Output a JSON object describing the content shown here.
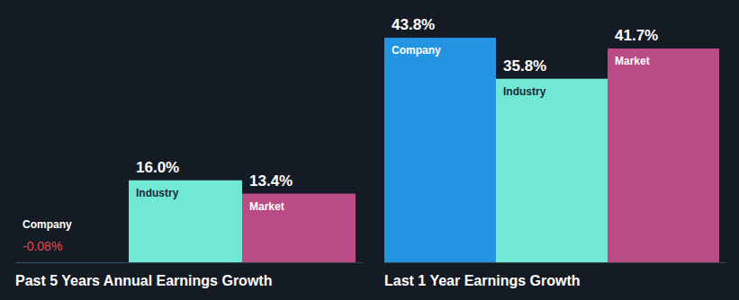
{
  "chart_data": [
    {
      "type": "bar",
      "title": "Past 5 Years Annual Earnings Growth",
      "categories": [
        "Company",
        "Industry",
        "Market"
      ],
      "values": [
        -0.08,
        16.0,
        13.4
      ],
      "value_labels": [
        "-0.08%",
        "16.0%",
        "13.4%"
      ],
      "colors": [
        "#2394df",
        "#71e7d6",
        "#bb4b87"
      ],
      "data_labels": true,
      "tick_labels": false
    },
    {
      "type": "bar",
      "title": "Last 1 Year Earnings Growth",
      "categories": [
        "Company",
        "Industry",
        "Market"
      ],
      "values": [
        43.8,
        35.8,
        41.7
      ],
      "value_labels": [
        "43.8%",
        "35.8%",
        "41.7%"
      ],
      "colors": [
        "#2394df",
        "#71e7d6",
        "#bb4b87"
      ],
      "data_labels": true,
      "tick_labels": false
    }
  ]
}
